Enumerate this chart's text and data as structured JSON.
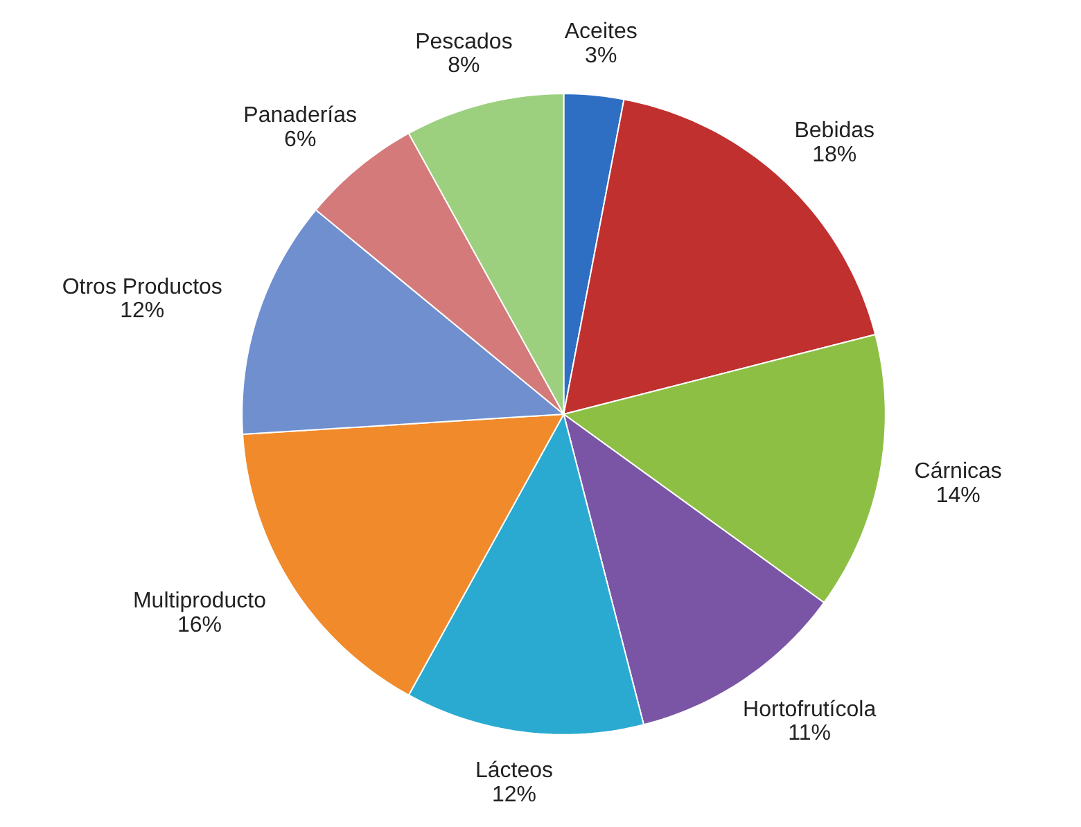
{
  "chart_data": {
    "type": "pie",
    "categories": [
      "Aceites",
      "Bebidas",
      "Cárnicas",
      "Hortofrutícola",
      "Lácteos",
      "Multiproducto",
      "Otros Productos",
      "Panaderías",
      "Pescados"
    ],
    "values": [
      3,
      18,
      14,
      11,
      12,
      16,
      12,
      6,
      8
    ],
    "value_labels": [
      "3%",
      "18%",
      "14%",
      "11%",
      "12%",
      "16%",
      "12%",
      "6%",
      "8%"
    ],
    "colors": [
      "#2e6fc4",
      "#c0302f",
      "#8dbf45",
      "#7a55a6",
      "#2aaad0",
      "#f08a2a",
      "#6f8fcf",
      "#d47a7a",
      "#9ccf7e"
    ]
  }
}
